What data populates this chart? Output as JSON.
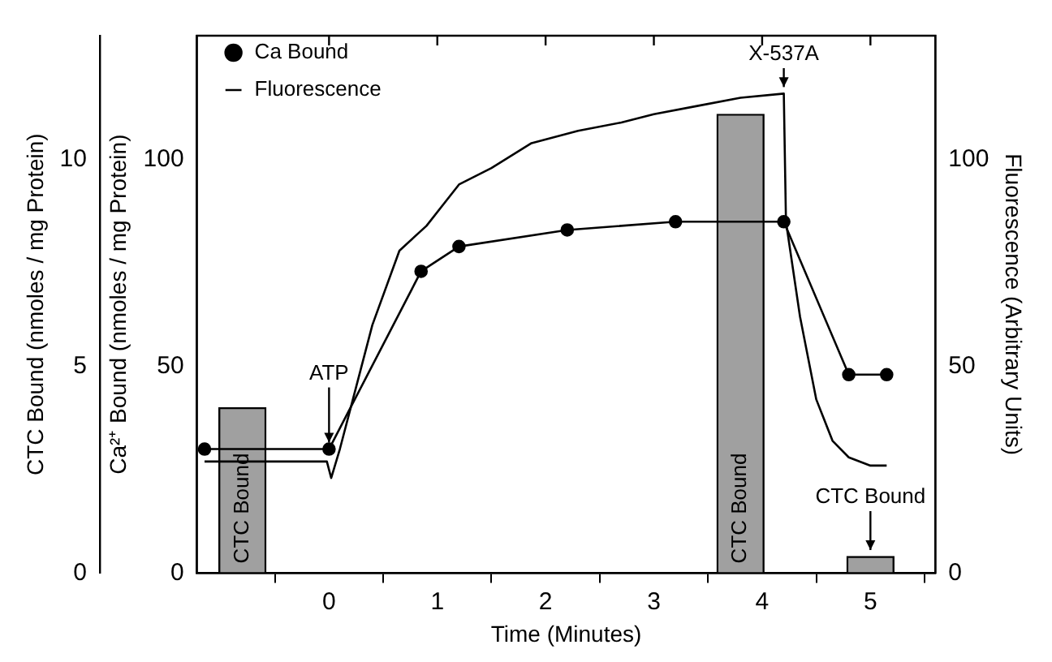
{
  "chart_data": {
    "type": "line",
    "xlabel": "Time (Minutes)",
    "ylabel": "Ca²⁺ Bound (nmoles / mg Protein)",
    "y2label": "Fluorescence (Arbitrary Units)",
    "y3label": "CTC Bound (nmoles / mg Protein)",
    "xlim": [
      -1.22,
      5.6
    ],
    "xticks": [
      0,
      1,
      2,
      3,
      4,
      5
    ],
    "ylim": [
      0,
      130
    ],
    "yticks": [
      0,
      50,
      100
    ],
    "y2lim": [
      0,
      130
    ],
    "y2ticks": [
      0,
      50,
      100
    ],
    "y3lim": [
      0,
      13
    ],
    "y3ticks": [
      0,
      5,
      10
    ],
    "grid": false,
    "legend": "top left",
    "series": [
      {
        "name": "Ca Bound",
        "marker": "circle",
        "color": "#000000",
        "axis": "y",
        "x": [
          -1.15,
          0,
          0.85,
          1.2,
          2.2,
          3.2,
          4.2,
          4.8,
          5.15
        ],
        "values": [
          30,
          30,
          73,
          79,
          83,
          85,
          85,
          48,
          48
        ]
      },
      {
        "name": "Fluorescence",
        "marker": "none",
        "color": "#000000",
        "axis": "y2",
        "x": [
          -1.15,
          -0.02,
          0.02,
          0.1,
          0.2,
          0.4,
          0.65,
          0.9,
          1.2,
          1.5,
          1.87,
          2.3,
          2.7,
          3.0,
          3.4,
          3.8,
          4.2,
          4.22,
          4.35,
          4.5,
          4.65,
          4.8,
          5.0,
          5.15
        ],
        "values": [
          27,
          27,
          23,
          30,
          40,
          60,
          78,
          84,
          94,
          98,
          104,
          107,
          109,
          111,
          113,
          115,
          116,
          85,
          62,
          42,
          32,
          28,
          26,
          26
        ]
      },
      {
        "type": "bar",
        "color": "#a0a0a0",
        "axis": "y3",
        "x": [
          -0.8,
          3.8,
          5.0
        ],
        "values": [
          4.0,
          11.1,
          0.4
        ]
      }
    ],
    "annotations": [
      {
        "text": "ATP",
        "x": 0,
        "y": 30
      },
      {
        "text": "X-537A",
        "x": 4.2,
        "y": 116
      },
      "CTC Bound",
      "CTC Bound",
      "CTC Bound"
    ]
  }
}
